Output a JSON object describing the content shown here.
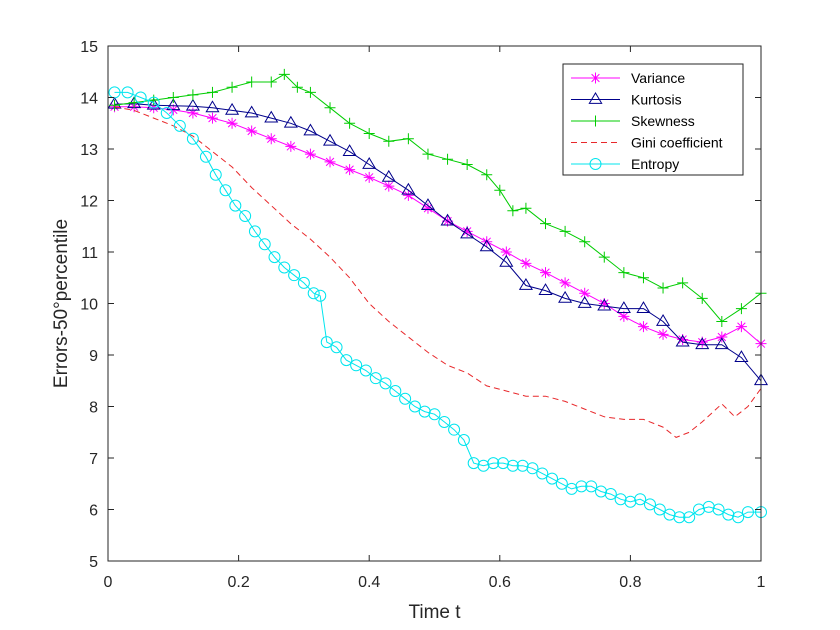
{
  "chart_data": {
    "type": "line",
    "title": "",
    "xlabel": "Time t",
    "ylabel": "Errors-50°percentile",
    "xlim": [
      0,
      1
    ],
    "ylim": [
      5,
      15
    ],
    "xticks": [
      0,
      0.2,
      0.4,
      0.6,
      0.8,
      1
    ],
    "xtick_labels": [
      "0",
      "0.2",
      "0.4",
      "0.6",
      "0.8",
      "1"
    ],
    "yticks": [
      5,
      6,
      7,
      8,
      9,
      10,
      11,
      12,
      13,
      14,
      15
    ],
    "ytick_labels": [
      "5",
      "6",
      "7",
      "8",
      "9",
      "10",
      "11",
      "12",
      "13",
      "14",
      "15"
    ],
    "grid": false,
    "legend_position": "top-right",
    "series": [
      {
        "name": "Variance",
        "color": "#ff00ff",
        "marker": "star",
        "line": "solid",
        "x": [
          0.01,
          0.04,
          0.07,
          0.1,
          0.13,
          0.16,
          0.19,
          0.22,
          0.25,
          0.28,
          0.31,
          0.34,
          0.37,
          0.4,
          0.43,
          0.46,
          0.49,
          0.52,
          0.55,
          0.58,
          0.61,
          0.64,
          0.67,
          0.7,
          0.73,
          0.76,
          0.79,
          0.82,
          0.85,
          0.88,
          0.91,
          0.94,
          0.97,
          1.0
        ],
        "y": [
          13.82,
          13.82,
          13.8,
          13.76,
          13.7,
          13.6,
          13.5,
          13.35,
          13.2,
          13.05,
          12.9,
          12.75,
          12.6,
          12.45,
          12.28,
          12.1,
          11.85,
          11.6,
          11.4,
          11.2,
          11.0,
          10.78,
          10.6,
          10.4,
          10.2,
          10.0,
          9.75,
          9.55,
          9.4,
          9.3,
          9.25,
          9.35,
          9.55,
          9.22
        ]
      },
      {
        "name": "Kurtosis",
        "color": "#00008b",
        "marker": "triangle",
        "line": "solid",
        "x": [
          0.01,
          0.04,
          0.07,
          0.1,
          0.13,
          0.16,
          0.19,
          0.22,
          0.25,
          0.28,
          0.31,
          0.34,
          0.37,
          0.4,
          0.43,
          0.46,
          0.49,
          0.52,
          0.55,
          0.58,
          0.61,
          0.64,
          0.67,
          0.7,
          0.73,
          0.76,
          0.79,
          0.82,
          0.85,
          0.88,
          0.91,
          0.94,
          0.97,
          1.0
        ],
        "y": [
          13.87,
          13.88,
          13.85,
          13.84,
          13.83,
          13.8,
          13.75,
          13.7,
          13.6,
          13.5,
          13.35,
          13.15,
          12.95,
          12.7,
          12.45,
          12.2,
          11.9,
          11.6,
          11.35,
          11.1,
          10.8,
          10.35,
          10.25,
          10.1,
          10.0,
          9.95,
          9.9,
          9.9,
          9.65,
          9.25,
          9.2,
          9.2,
          8.95,
          8.5
        ]
      },
      {
        "name": "Skewness",
        "color": "#00cc00",
        "marker": "plus",
        "line": "solid",
        "x": [
          0.01,
          0.04,
          0.07,
          0.1,
          0.13,
          0.16,
          0.19,
          0.22,
          0.25,
          0.27,
          0.29,
          0.31,
          0.34,
          0.37,
          0.4,
          0.43,
          0.46,
          0.49,
          0.52,
          0.55,
          0.58,
          0.6,
          0.62,
          0.64,
          0.67,
          0.7,
          0.73,
          0.76,
          0.79,
          0.82,
          0.85,
          0.88,
          0.91,
          0.94,
          0.97,
          1.0
        ],
        "y": [
          13.85,
          13.9,
          13.95,
          14.0,
          14.05,
          14.1,
          14.2,
          14.3,
          14.3,
          14.45,
          14.2,
          14.1,
          13.8,
          13.5,
          13.3,
          13.15,
          13.2,
          12.9,
          12.8,
          12.7,
          12.5,
          12.2,
          11.8,
          11.85,
          11.55,
          11.4,
          11.2,
          10.9,
          10.6,
          10.5,
          10.3,
          10.4,
          10.1,
          9.65,
          9.9,
          10.2
        ]
      },
      {
        "name": "Gini coefficient",
        "color": "#e8282b",
        "marker": "none",
        "line": "dashed",
        "x": [
          0.01,
          0.04,
          0.07,
          0.1,
          0.13,
          0.16,
          0.19,
          0.22,
          0.25,
          0.28,
          0.31,
          0.34,
          0.37,
          0.4,
          0.43,
          0.46,
          0.49,
          0.52,
          0.55,
          0.58,
          0.61,
          0.64,
          0.67,
          0.7,
          0.73,
          0.76,
          0.79,
          0.82,
          0.85,
          0.87,
          0.89,
          0.91,
          0.94,
          0.96,
          0.98,
          1.0
        ],
        "y": [
          13.82,
          13.75,
          13.6,
          13.45,
          13.25,
          12.95,
          12.65,
          12.25,
          11.9,
          11.55,
          11.25,
          10.9,
          10.5,
          10.0,
          9.65,
          9.35,
          9.05,
          8.8,
          8.65,
          8.4,
          8.3,
          8.2,
          8.2,
          8.1,
          7.95,
          7.8,
          7.75,
          7.75,
          7.6,
          7.4,
          7.5,
          7.7,
          8.05,
          7.8,
          8.0,
          8.35
        ]
      },
      {
        "name": "Entropy",
        "color": "#00e5ee",
        "marker": "circle",
        "line": "solid",
        "x": [
          0.01,
          0.03,
          0.05,
          0.07,
          0.09,
          0.11,
          0.13,
          0.15,
          0.165,
          0.18,
          0.195,
          0.21,
          0.225,
          0.24,
          0.255,
          0.27,
          0.285,
          0.3,
          0.315,
          0.325,
          0.335,
          0.35,
          0.365,
          0.38,
          0.395,
          0.41,
          0.425,
          0.44,
          0.455,
          0.47,
          0.485,
          0.5,
          0.515,
          0.53,
          0.545,
          0.56,
          0.575,
          0.59,
          0.605,
          0.62,
          0.635,
          0.65,
          0.665,
          0.68,
          0.695,
          0.71,
          0.725,
          0.74,
          0.755,
          0.77,
          0.785,
          0.8,
          0.815,
          0.83,
          0.845,
          0.86,
          0.875,
          0.89,
          0.905,
          0.92,
          0.935,
          0.95,
          0.965,
          0.98,
          1.0
        ],
        "y": [
          14.1,
          14.1,
          14.0,
          13.9,
          13.7,
          13.45,
          13.2,
          12.85,
          12.5,
          12.2,
          11.9,
          11.7,
          11.4,
          11.15,
          10.9,
          10.7,
          10.55,
          10.4,
          10.2,
          10.15,
          9.25,
          9.15,
          8.9,
          8.8,
          8.7,
          8.55,
          8.45,
          8.3,
          8.15,
          8.0,
          7.9,
          7.85,
          7.7,
          7.55,
          7.35,
          6.9,
          6.85,
          6.9,
          6.9,
          6.85,
          6.85,
          6.8,
          6.7,
          6.6,
          6.5,
          6.4,
          6.45,
          6.45,
          6.35,
          6.3,
          6.2,
          6.15,
          6.2,
          6.1,
          6.0,
          5.9,
          5.85,
          5.85,
          6.0,
          6.05,
          6.0,
          5.9,
          5.85,
          5.95,
          5.95
        ]
      }
    ]
  }
}
